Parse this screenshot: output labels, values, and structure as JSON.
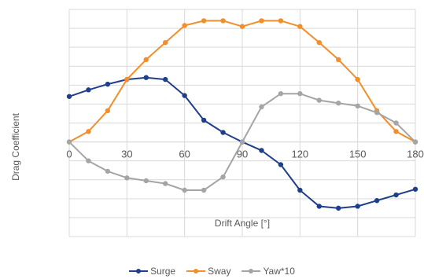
{
  "chart_data": {
    "type": "line",
    "title": "",
    "xlabel": "Drift Angle [°]",
    "ylabel": "Drag Coefficient",
    "xlim": [
      0,
      180
    ],
    "x_ticks": [
      "0",
      "30",
      "60",
      "90",
      "120",
      "150",
      "180"
    ],
    "ylim": [
      -1.0,
      1.4
    ],
    "y_ticks_shown": false,
    "grid": true,
    "legend_position": "bottom",
    "series": [
      {
        "name": "Surge",
        "color": "#1f3f8a",
        "x": [
          0,
          10,
          20,
          30,
          40,
          50,
          60,
          70,
          80,
          90,
          100,
          110,
          120,
          130,
          140,
          150,
          160,
          170,
          180
        ],
        "y": [
          0.48,
          0.55,
          0.61,
          0.66,
          0.68,
          0.66,
          0.49,
          0.23,
          0.1,
          0.0,
          -0.09,
          -0.24,
          -0.51,
          -0.68,
          -0.7,
          -0.68,
          -0.62,
          -0.56,
          -0.5
        ]
      },
      {
        "name": "Sway",
        "color": "#f28e2b",
        "x": [
          0,
          10,
          20,
          30,
          40,
          50,
          60,
          70,
          80,
          90,
          100,
          110,
          120,
          130,
          140,
          150,
          160,
          170,
          180
        ],
        "y": [
          0.0,
          0.11,
          0.33,
          0.66,
          0.87,
          1.05,
          1.23,
          1.28,
          1.28,
          1.22,
          1.28,
          1.28,
          1.22,
          1.05,
          0.87,
          0.66,
          0.33,
          0.11,
          0.0
        ]
      },
      {
        "name": "Yaw*10",
        "color": "#a5a5a5",
        "x": [
          0,
          10,
          20,
          30,
          40,
          50,
          60,
          70,
          80,
          90,
          100,
          110,
          120,
          130,
          140,
          150,
          160,
          170,
          180
        ],
        "y": [
          0.0,
          -0.2,
          -0.31,
          -0.38,
          -0.41,
          -0.44,
          -0.51,
          -0.51,
          -0.37,
          0.0,
          0.37,
          0.51,
          0.51,
          0.44,
          0.41,
          0.38,
          0.31,
          0.2,
          0.0
        ]
      }
    ]
  }
}
